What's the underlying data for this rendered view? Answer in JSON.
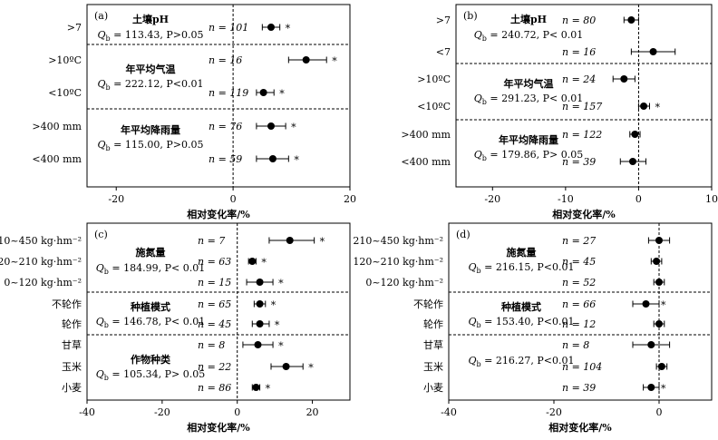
{
  "chart_data": [
    {
      "type": "scatter",
      "panel_label": "(a)",
      "xlabel": "相对变化率/%",
      "xlim": [
        -25,
        20
      ],
      "xticks": [
        -20,
        0,
        20
      ],
      "rows": [
        {
          "label": ">7",
          "n": "n = 101",
          "value": 6.5,
          "ci": [
            5.0,
            8.0
          ],
          "sig": "*"
        },
        {
          "label": ">10ºC",
          "n": "n = 16",
          "value": 12.5,
          "ci": [
            9.5,
            16.0
          ],
          "sig": "*"
        },
        {
          "label": "<10ºC",
          "n": "n = 119",
          "value": 5.2,
          "ci": [
            4.0,
            7.0
          ],
          "sig": "*"
        },
        {
          "label": ">400 mm",
          "n": "n = 76",
          "value": 6.5,
          "ci": [
            4.0,
            9.0
          ],
          "sig": "*"
        },
        {
          "label": "<400 mm",
          "n": "n = 59",
          "value": 6.8,
          "ci": [
            4.0,
            9.5
          ],
          "sig": "*"
        }
      ],
      "groups": [
        {
          "name": "土壤pH",
          "qb": "113.43",
          "pstat": "P>0.05"
        },
        {
          "name": "年平均气温",
          "qb": "222.12",
          "pstat": "P<0.01"
        },
        {
          "name": "年平均降雨量",
          "qb": "115.00",
          "pstat": "P>0.05"
        }
      ]
    },
    {
      "type": "scatter",
      "panel_label": "(b)",
      "xlabel": "相对变化率/%",
      "xlim": [
        -25,
        10
      ],
      "xticks": [
        -20,
        -10,
        0,
        10
      ],
      "rows": [
        {
          "label": ">7",
          "n": "n = 80",
          "value": -1.0,
          "ci": [
            -2.0,
            0.0
          ],
          "sig": ""
        },
        {
          "label": "<7",
          "n": "n = 16",
          "value": 2.0,
          "ci": [
            -1.0,
            5.0
          ],
          "sig": ""
        },
        {
          "label": ">10ºC",
          "n": "n = 24",
          "value": -2.0,
          "ci": [
            -3.5,
            -0.5
          ],
          "sig": ""
        },
        {
          "label": "<10ºC",
          "n": "n = 157",
          "value": 0.7,
          "ci": [
            0.0,
            1.5
          ],
          "sig": "*"
        },
        {
          "label": ">400 mm",
          "n": "n = 122",
          "value": -0.5,
          "ci": [
            -1.2,
            0.2
          ],
          "sig": ""
        },
        {
          "label": "<400 mm",
          "n": "n = 39",
          "value": -0.8,
          "ci": [
            -2.5,
            1.0
          ],
          "sig": ""
        }
      ],
      "groups": [
        {
          "name": "土壤pH",
          "qb": "240.72",
          "pstat": "P< 0.01"
        },
        {
          "name": "年平均气温",
          "qb": "291.23",
          "pstat": "P< 0.01"
        },
        {
          "name": "年平均降雨量",
          "qb": "179.86",
          "pstat": "P> 0.05"
        }
      ]
    },
    {
      "type": "scatter",
      "panel_label": "(c)",
      "xlabel": "相对变化率/%",
      "xlim": [
        -40,
        30
      ],
      "xticks": [
        -40,
        -20,
        0,
        20
      ],
      "rows": [
        {
          "label": "210~450 kg·hm⁻²",
          "n": "n = 7",
          "value": 14.0,
          "ci": [
            8.5,
            20.5
          ],
          "sig": "*"
        },
        {
          "label": "120~210 kg·hm⁻²",
          "n": "n = 63",
          "value": 4.0,
          "ci": [
            3.0,
            5.0
          ],
          "sig": "*"
        },
        {
          "label": "0~120 kg·hm⁻²",
          "n": "n = 15",
          "value": 6.0,
          "ci": [
            2.5,
            9.5
          ],
          "sig": "*"
        },
        {
          "label": "不轮作",
          "n": "n = 65",
          "value": 6.0,
          "ci": [
            4.5,
            7.5
          ],
          "sig": "*"
        },
        {
          "label": "轮作",
          "n": "n = 45",
          "value": 6.0,
          "ci": [
            4.0,
            8.5
          ],
          "sig": "*"
        },
        {
          "label": "甘草",
          "n": "n = 8",
          "value": 5.5,
          "ci": [
            1.5,
            9.5
          ],
          "sig": "*"
        },
        {
          "label": "玉米",
          "n": "n = 22",
          "value": 13.0,
          "ci": [
            9.0,
            17.5
          ],
          "sig": "*"
        },
        {
          "label": "小麦",
          "n": "n = 86",
          "value": 5.0,
          "ci": [
            4.0,
            6.0
          ],
          "sig": "*"
        }
      ],
      "groups": [
        {
          "name": "施氮量",
          "qb": "184.99",
          "pstat": "P< 0.01"
        },
        {
          "name": "种植模式",
          "qb": "146.78",
          "pstat": "P< 0.01"
        },
        {
          "name": "作物种类",
          "qb": "105.34",
          "pstat": "P> 0.05"
        }
      ]
    },
    {
      "type": "scatter",
      "panel_label": "(d)",
      "xlabel": "相对变化率/%",
      "xlim": [
        -40,
        10
      ],
      "xticks": [
        -40,
        -20,
        0
      ],
      "rows": [
        {
          "label": "210~450 kg·hm⁻²",
          "n": "n = 27",
          "value": 0.0,
          "ci": [
            -2.0,
            2.0
          ],
          "sig": ""
        },
        {
          "label": "120~210 kg·hm⁻²",
          "n": "n = 45",
          "value": -0.5,
          "ci": [
            -1.5,
            0.5
          ],
          "sig": ""
        },
        {
          "label": "0~120 kg·hm⁻²",
          "n": "n = 52",
          "value": 0.0,
          "ci": [
            -1.0,
            1.0
          ],
          "sig": ""
        },
        {
          "label": "不轮作",
          "n": "n = 66",
          "value": -2.5,
          "ci": [
            -5.0,
            0.0
          ],
          "sig": "*"
        },
        {
          "label": "轮作",
          "n": "n = 12",
          "value": 0.0,
          "ci": [
            -1.0,
            1.0
          ],
          "sig": ""
        },
        {
          "label": "甘草",
          "n": "n = 8",
          "value": -1.5,
          "ci": [
            -5.0,
            2.0
          ],
          "sig": ""
        },
        {
          "label": "玉米",
          "n": "n = 104",
          "value": 0.5,
          "ci": [
            -0.5,
            1.5
          ],
          "sig": ""
        },
        {
          "label": "小麦",
          "n": "n = 39",
          "value": -1.5,
          "ci": [
            -3.0,
            0.0
          ],
          "sig": "*"
        }
      ],
      "groups": [
        {
          "name": "施氮量",
          "qb": "216.15",
          "pstat": "P<0.01"
        },
        {
          "name": "种植模式",
          "qb": "153.40",
          "pstat": "P<0.01"
        },
        {
          "name": "",
          "qb": "216.27",
          "pstat": "P<0.01"
        }
      ]
    }
  ]
}
